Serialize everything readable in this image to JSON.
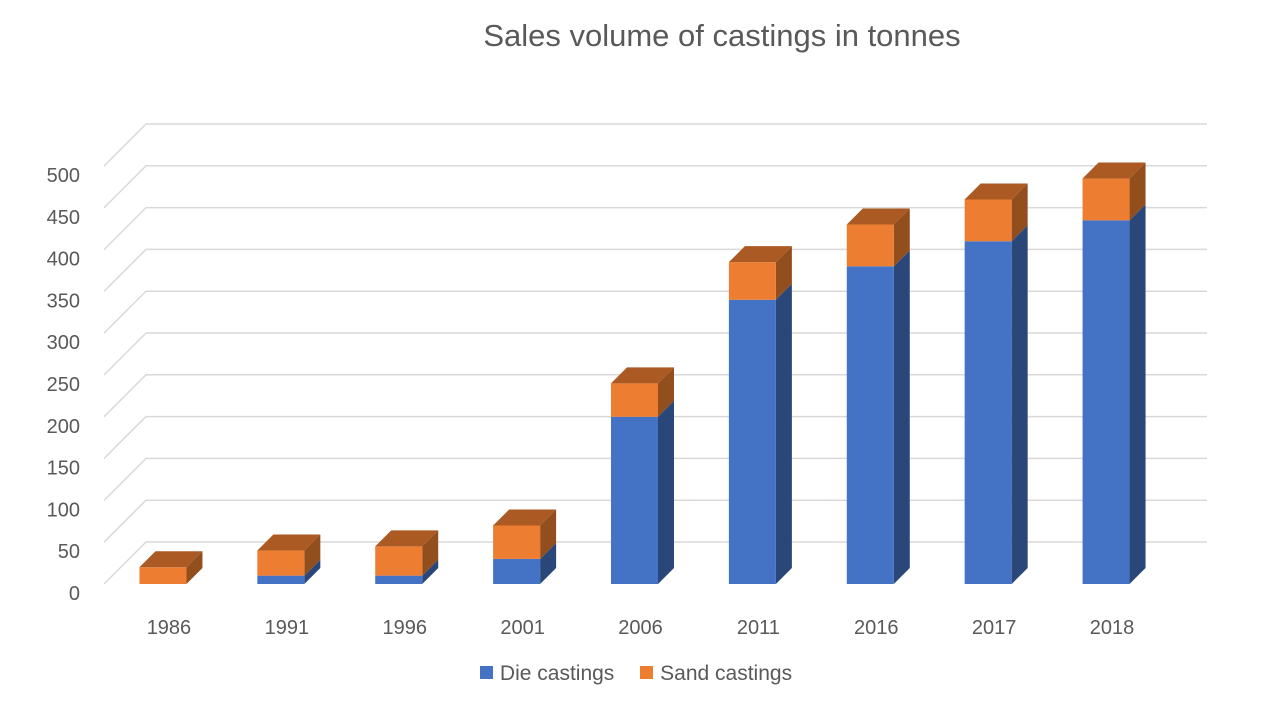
{
  "chart_data": {
    "type": "bar",
    "stacked": true,
    "style": "3d-column",
    "title": "Sales volume of castings in tonnes",
    "categories": [
      "1986",
      "1991",
      "1996",
      "2001",
      "2006",
      "2011",
      "2016",
      "2017",
      "2018"
    ],
    "series": [
      {
        "name": "Die castings",
        "color": "#4472C4",
        "values": [
          0,
          10,
          10,
          30,
          200,
          340,
          380,
          410,
          435
        ]
      },
      {
        "name": "Sand castings",
        "color": "#ED7D31",
        "values": [
          20,
          30,
          35,
          40,
          40,
          45,
          50,
          50,
          50
        ]
      }
    ],
    "y_ticks": [
      "0",
      "50",
      "100",
      "150",
      "200",
      "250",
      "300",
      "350",
      "400",
      "450",
      "500"
    ],
    "ylim": [
      0,
      500
    ],
    "grid": true,
    "legend": "bottom"
  }
}
